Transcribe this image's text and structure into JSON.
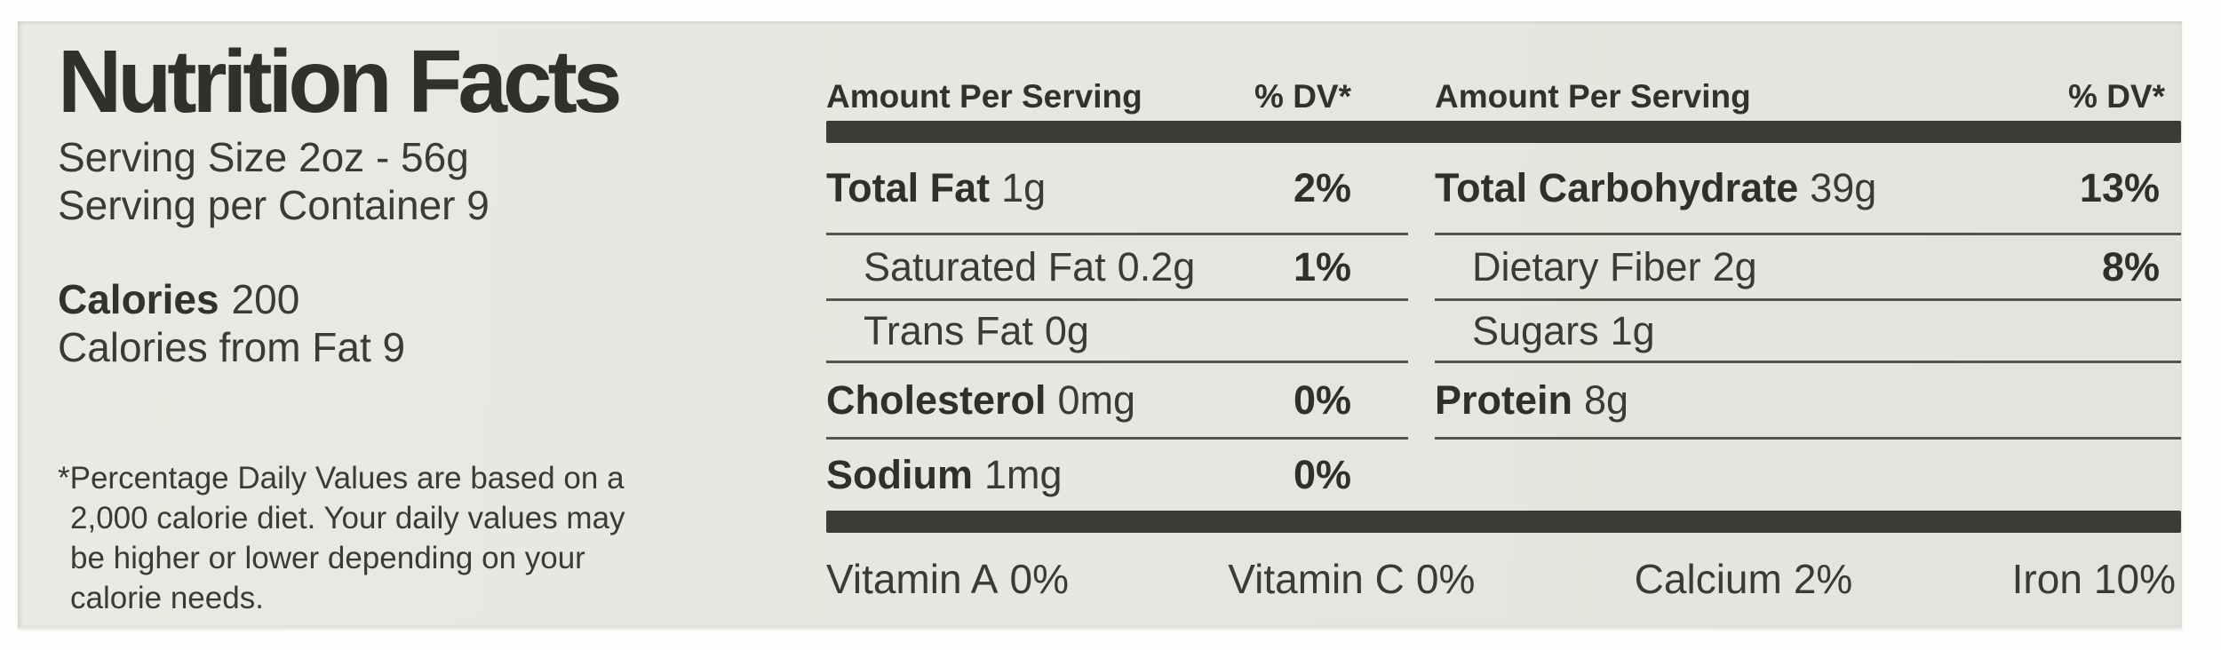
{
  "colors": {
    "paper": "#e6e7e0",
    "ink": "#34332e",
    "bar": "#3c3b35",
    "rule": "#56544c"
  },
  "left": {
    "title": "Nutrition Facts",
    "serving_size": "Serving Size 2oz - 56g",
    "servings_per_container": "Serving per Container 9",
    "calories_label": "Calories",
    "calories_value": "200",
    "calories_from_fat": "Calories from Fat 9",
    "footnote_lines": [
      "*Percentage Daily Values are based on a",
      "2,000 calorie diet. Your daily values may",
      "be higher or lower depending on your",
      "calorie needs."
    ]
  },
  "columns": [
    {
      "amount_header": "Amount Per Serving",
      "dv_header": "% DV*",
      "rows": [
        {
          "name": "Total Fat",
          "amount": "1g",
          "dv": "2%"
        },
        {
          "name": "Saturated Fat",
          "amount": "0.2g",
          "dv": "1%"
        },
        {
          "name": "Trans Fat",
          "amount": "0g",
          "dv": ""
        },
        {
          "name": "Cholesterol",
          "amount": "0mg",
          "dv": "0%"
        },
        {
          "name": "Sodium",
          "amount": "1mg",
          "dv": "0%"
        }
      ]
    },
    {
      "amount_header": "Amount Per Serving",
      "dv_header": "% DV*",
      "rows": [
        {
          "name": "Total Carbohydrate",
          "amount": "39g",
          "dv": "13%"
        },
        {
          "name": "Dietary Fiber",
          "amount": "2g",
          "dv": "8%"
        },
        {
          "name": "Sugars",
          "amount": "1g",
          "dv": ""
        },
        {
          "name": "Protein",
          "amount": "8g",
          "dv": ""
        }
      ]
    }
  ],
  "micronutrients": [
    {
      "name": "Vitamin A",
      "value": "0%"
    },
    {
      "name": "Vitamin C",
      "value": "0%"
    },
    {
      "name": "Calcium",
      "value": "2%"
    },
    {
      "name": "Iron",
      "value": "10%"
    }
  ]
}
